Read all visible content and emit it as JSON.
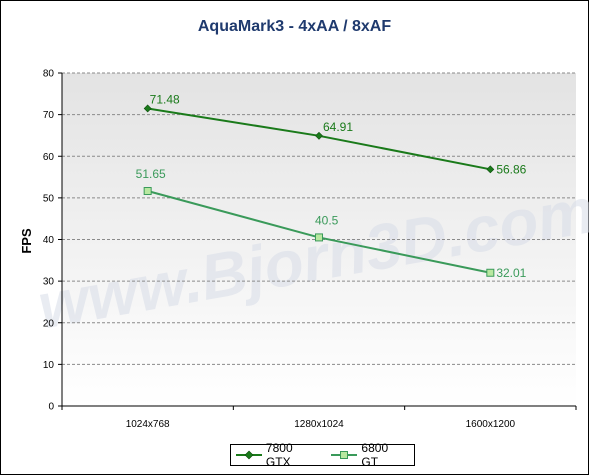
{
  "chart_data": {
    "type": "line",
    "title": "AquaMark3 - 4xAA / 8xAF",
    "ylabel": "FPS",
    "xlabel": "",
    "categories": [
      "1024x768",
      "1280x1024",
      "1600x1200"
    ],
    "ylim": [
      0,
      80
    ],
    "yticks": [
      0,
      10,
      20,
      30,
      40,
      50,
      60,
      70,
      80
    ],
    "grid": true,
    "legend_position": "bottom",
    "watermark": "www.Bjorn3D.com",
    "series": [
      {
        "name": "7800 GTX",
        "values": [
          71.48,
          64.91,
          56.86
        ],
        "labels": [
          "71.48",
          "64.91",
          "56.86"
        ],
        "color": "#1a7a1a",
        "marker": "diamond"
      },
      {
        "name": "6800 GT",
        "values": [
          51.65,
          40.5,
          32.01
        ],
        "labels": [
          "51.65",
          "40.5",
          "32.01"
        ],
        "color": "#3a9a5a",
        "marker": "square"
      }
    ]
  }
}
